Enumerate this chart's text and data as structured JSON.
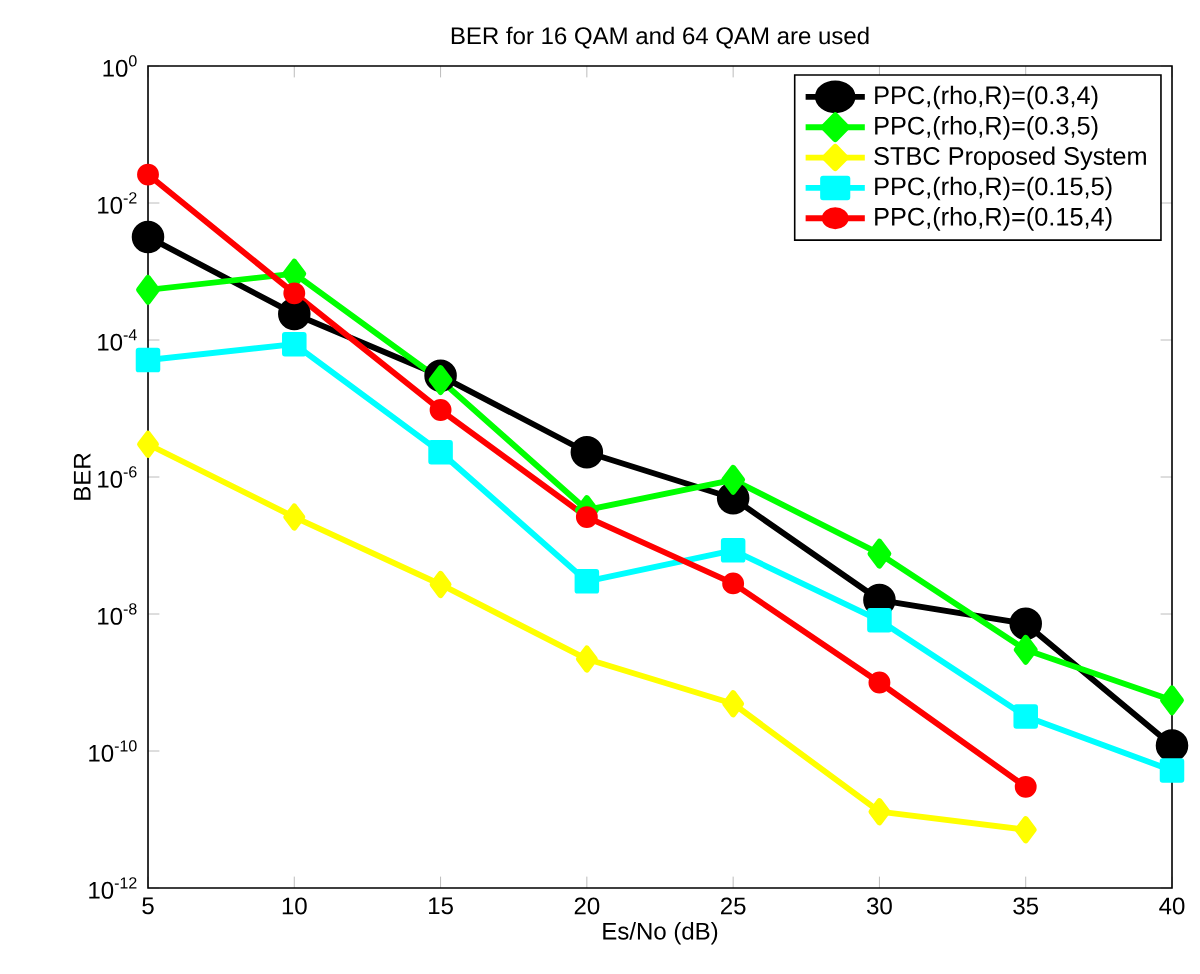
{
  "chart_data": {
    "type": "line",
    "title": "BER for 16 QAM and 64 QAM are used",
    "xlabel": "Es/No (dB)",
    "ylabel": "BER",
    "x": [
      5,
      10,
      15,
      20,
      25,
      30,
      35,
      40
    ],
    "series": [
      {
        "name": "PPC,(rho,R)=(0.3,4)",
        "color": "#000000",
        "marker": "circle",
        "values": [
          0.0032,
          0.00024,
          3e-05,
          2.3e-06,
          4.9e-07,
          1.6e-08,
          7.2e-09,
          1.2e-10
        ]
      },
      {
        "name": "PPC,(rho,R)=(0.3,5)",
        "color": "#00ff00",
        "marker": "diamond",
        "values": [
          0.00054,
          0.00093,
          2.6e-05,
          3.3e-07,
          9.1e-07,
          7.6e-08,
          3e-09,
          5.5e-10
        ]
      },
      {
        "name": "STBC Proposed System",
        "color": "#ffff00",
        "marker": "diamond",
        "values": [
          3e-06,
          2.6e-07,
          2.7e-08,
          2.2e-09,
          4.9e-10,
          1.3e-11,
          7.1e-12,
          null
        ]
      },
      {
        "name": "PPC,(rho,R)=(0.15,5)",
        "color": "#00ffff",
        "marker": "square",
        "values": [
          5.1e-05,
          8.7e-05,
          2.3e-06,
          3e-08,
          8.5e-08,
          8.1e-09,
          3.2e-10,
          5.2e-11
        ]
      },
      {
        "name": "PPC,(rho,R)=(0.15,4)",
        "color": "#ff0000",
        "marker": "circle",
        "values": [
          0.026,
          0.00048,
          9.5e-06,
          2.6e-07,
          2.8e-08,
          1e-09,
          3e-11,
          null
        ]
      }
    ],
    "log": "y",
    "xlim": [
      5,
      40
    ],
    "ylim": [
      1e-12,
      1
    ],
    "xticks": [
      5,
      10,
      15,
      20,
      25,
      30,
      35,
      40
    ],
    "yticks": [
      {
        "value": 1e-12,
        "label": "10$^{-12}$"
      },
      {
        "value": 1e-10,
        "label": "10$^{-10}$"
      },
      {
        "value": 1e-08,
        "label": "10$^{-8}$"
      },
      {
        "value": 1e-06,
        "label": "10$^{-6}$"
      },
      {
        "value": 0.0001,
        "label": "10$^{-4}$"
      },
      {
        "value": 0.01,
        "label": "10$^{-2}$"
      },
      {
        "value": 1,
        "label": "10$^{0}$"
      }
    ],
    "legend": "top right",
    "grid": false,
    "line_style": "solid"
  }
}
